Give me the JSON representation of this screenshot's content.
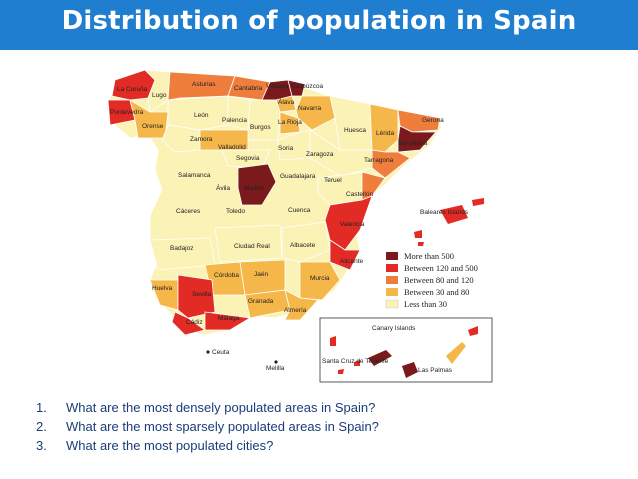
{
  "header": {
    "title": "Distribution of population in Spain"
  },
  "legend": {
    "items": [
      {
        "label": "More than 500",
        "color": "#7a1a1c"
      },
      {
        "label": "Between 120 and 500",
        "color": "#e32b26"
      },
      {
        "label": "Between 80 and 120",
        "color": "#ef7e3d"
      },
      {
        "label": "Between 30 and 80",
        "color": "#f6b74a"
      },
      {
        "label": "Less than 30",
        "color": "#fbf2b6"
      }
    ]
  },
  "map": {
    "provinces": {
      "la_coruna": "La Coruña",
      "lugo": "Lugo",
      "pontevedra": "Pontevedra",
      "orense": "Orense",
      "asturias": "Asturias",
      "cantabria": "Cantabria",
      "vizcaya": "Vizcaya",
      "guipuzcoa": "Guipúzcoa",
      "alava": "Álava",
      "navarra": "Navarra",
      "leon": "León",
      "palencia": "Palencia",
      "burgos": "Burgos",
      "la_rioja": "La Rioja",
      "huesca": "Huesca",
      "lerida": "Lérida",
      "gerona": "Gerona",
      "barcelona": "Barcelona",
      "tarragona": "Tarragona",
      "zamora": "Zamora",
      "valladolid": "Valladolid",
      "soria": "Soria",
      "zaragoza": "Zaragoza",
      "segovia": "Segovia",
      "salamanca": "Salamanca",
      "avila": "Ávila",
      "madrid": "Madrid",
      "guadalajara": "Guadalajara",
      "teruel": "Teruel",
      "castellon": "Castellón",
      "caceres": "Cáceres",
      "toledo": "Toledo",
      "cuenca": "Cuenca",
      "valencia": "Valencia",
      "badajoz": "Badajoz",
      "ciudad_real": "Ciudad Real",
      "albacete": "Albacete",
      "alicante": "Alicante",
      "cordoba": "Córdoba",
      "jaen": "Jaén",
      "murcia": "Murcia",
      "huelva": "Huelva",
      "sevilla": "Sevilla",
      "granada": "Granada",
      "almeria": "Almería",
      "cadiz": "Cádiz",
      "malaga": "Málaga",
      "baleares": "Baleares Islands",
      "ceuta": "Ceuta",
      "melilla": "Melilla"
    },
    "canary": {
      "title": "Canary Islands",
      "santa_cruz": "Santa Cruz de Tenerife",
      "las_palmas": "Las Palmas"
    }
  },
  "questions": [
    {
      "num": "1.",
      "text": "What are the most densely populated areas in Spain?"
    },
    {
      "num": "2.",
      "text": "What are the most sparsely populated areas in Spain?"
    },
    {
      "num": "3.",
      "text": "What are the most populated cities?"
    }
  ]
}
